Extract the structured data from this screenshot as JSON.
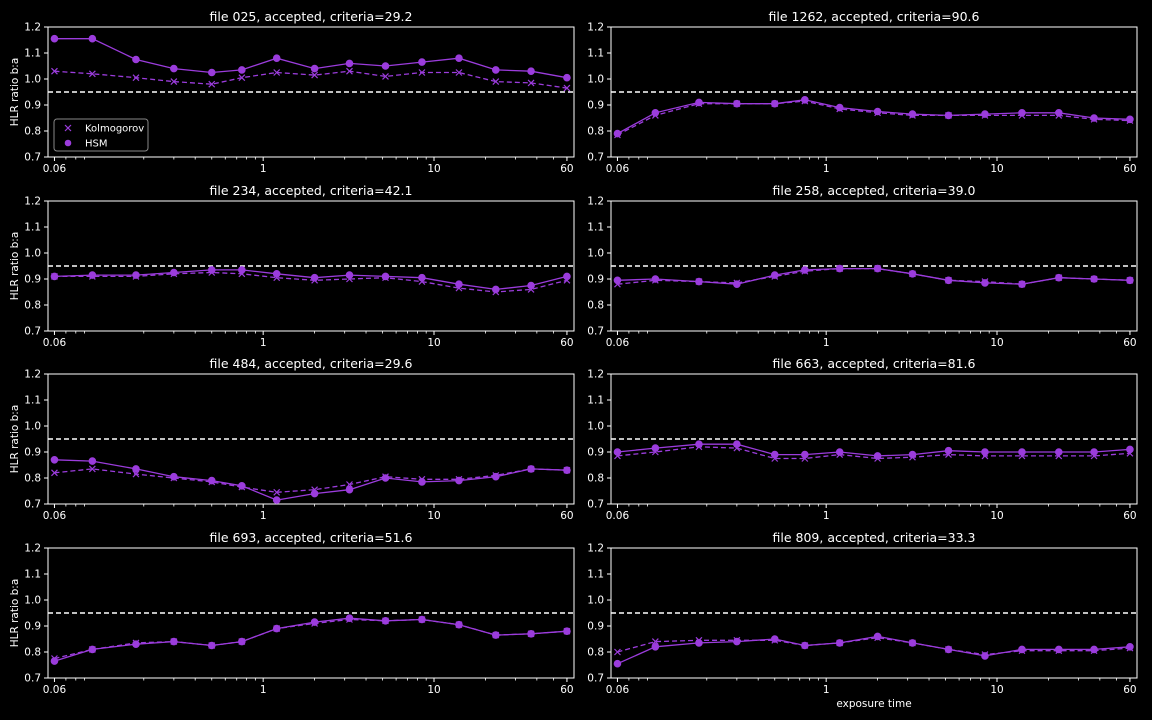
{
  "figure": {
    "background": "#000000",
    "foreground": "#ffffff",
    "series_color": "#9b3cdc",
    "reference_color": "#ffffff"
  },
  "chart_data": [
    {
      "type": "line",
      "title": "file 025, accepted, criteria=29.2",
      "xlabel": "",
      "ylabel": "HLR ratio b:a",
      "xscale": "log",
      "xlim": [
        0.055,
        66
      ],
      "ylim": [
        0.7,
        1.2
      ],
      "xticks": [
        0.06,
        1,
        10,
        60
      ],
      "xtick_labels": [
        "0.06",
        "1",
        "10",
        "60"
      ],
      "yticks": [
        0.7,
        0.8,
        0.9,
        1.0,
        1.1,
        1.2
      ],
      "ytick_labels": [
        "0.7",
        "0.8",
        "0.9",
        "1.0",
        "1.1",
        "1.2"
      ],
      "reference_line": 0.95,
      "legend": {
        "position": "lower-left",
        "entries": [
          "Kolmogorov",
          "HSM"
        ]
      },
      "x": [
        0.06,
        0.1,
        0.18,
        0.3,
        0.5,
        0.75,
        1.2,
        2,
        3.2,
        5.2,
        8.5,
        14,
        23,
        37,
        60
      ],
      "series": [
        {
          "name": "Kolmogorov",
          "marker": "x",
          "linestyle": "dashed",
          "values": [
            1.03,
            1.02,
            1.005,
            0.99,
            0.98,
            1.005,
            1.025,
            1.015,
            1.03,
            1.01,
            1.025,
            1.025,
            0.99,
            0.985,
            0.965
          ]
        },
        {
          "name": "HSM",
          "marker": "o",
          "linestyle": "solid",
          "values": [
            1.155,
            1.155,
            1.075,
            1.04,
            1.025,
            1.035,
            1.08,
            1.04,
            1.06,
            1.05,
            1.065,
            1.08,
            1.035,
            1.03,
            1.005
          ]
        }
      ]
    },
    {
      "type": "line",
      "title": "file 1262, accepted, criteria=90.6",
      "xlabel": "",
      "ylabel": "",
      "xscale": "log",
      "xlim": [
        0.055,
        66
      ],
      "ylim": [
        0.7,
        1.2
      ],
      "xticks": [
        0.06,
        1,
        10,
        60
      ],
      "xtick_labels": [
        "0.06",
        "1",
        "10",
        "60"
      ],
      "yticks": [
        0.7,
        0.8,
        0.9,
        1.0,
        1.1,
        1.2
      ],
      "ytick_labels": [
        "0.7",
        "0.8",
        "0.9",
        "1.0",
        "1.1",
        "1.2"
      ],
      "reference_line": 0.95,
      "x": [
        0.06,
        0.1,
        0.18,
        0.3,
        0.5,
        0.75,
        1.2,
        2,
        3.2,
        5.2,
        8.5,
        14,
        23,
        37,
        60
      ],
      "series": [
        {
          "name": "Kolmogorov",
          "marker": "x",
          "linestyle": "dashed",
          "values": [
            0.785,
            0.86,
            0.905,
            0.905,
            0.905,
            0.915,
            0.885,
            0.87,
            0.86,
            0.86,
            0.86,
            0.86,
            0.86,
            0.845,
            0.84
          ]
        },
        {
          "name": "HSM",
          "marker": "o",
          "linestyle": "solid",
          "values": [
            0.79,
            0.87,
            0.91,
            0.905,
            0.905,
            0.92,
            0.89,
            0.875,
            0.865,
            0.86,
            0.865,
            0.87,
            0.87,
            0.85,
            0.845
          ]
        }
      ]
    },
    {
      "type": "line",
      "title": "file 234, accepted, criteria=42.1",
      "xlabel": "",
      "ylabel": "HLR ratio b:a",
      "xscale": "log",
      "xlim": [
        0.055,
        66
      ],
      "ylim": [
        0.7,
        1.2
      ],
      "xticks": [
        0.06,
        1,
        10,
        60
      ],
      "xtick_labels": [
        "0.06",
        "1",
        "10",
        "60"
      ],
      "yticks": [
        0.7,
        0.8,
        0.9,
        1.0,
        1.1,
        1.2
      ],
      "ytick_labels": [
        "0.7",
        "0.8",
        "0.9",
        "1.0",
        "1.1",
        "1.2"
      ],
      "reference_line": 0.95,
      "x": [
        0.06,
        0.1,
        0.18,
        0.3,
        0.5,
        0.75,
        1.2,
        2,
        3.2,
        5.2,
        8.5,
        14,
        23,
        37,
        60
      ],
      "series": [
        {
          "name": "Kolmogorov",
          "marker": "x",
          "linestyle": "dashed",
          "values": [
            0.91,
            0.91,
            0.91,
            0.92,
            0.925,
            0.92,
            0.905,
            0.895,
            0.9,
            0.905,
            0.89,
            0.865,
            0.85,
            0.86,
            0.895
          ]
        },
        {
          "name": "HSM",
          "marker": "o",
          "linestyle": "solid",
          "values": [
            0.91,
            0.915,
            0.915,
            0.925,
            0.935,
            0.935,
            0.92,
            0.905,
            0.915,
            0.91,
            0.905,
            0.88,
            0.86,
            0.875,
            0.91
          ]
        }
      ]
    },
    {
      "type": "line",
      "title": "file 258, accepted, criteria=39.0",
      "xlabel": "",
      "ylabel": "",
      "xscale": "log",
      "xlim": [
        0.055,
        66
      ],
      "ylim": [
        0.7,
        1.2
      ],
      "xticks": [
        0.06,
        1,
        10,
        60
      ],
      "xtick_labels": [
        "0.06",
        "1",
        "10",
        "60"
      ],
      "yticks": [
        0.7,
        0.8,
        0.9,
        1.0,
        1.1,
        1.2
      ],
      "ytick_labels": [
        "0.7",
        "0.8",
        "0.9",
        "1.0",
        "1.1",
        "1.2"
      ],
      "reference_line": 0.95,
      "x": [
        0.06,
        0.1,
        0.18,
        0.3,
        0.5,
        0.75,
        1.2,
        2,
        3.2,
        5.2,
        8.5,
        14,
        23,
        37,
        60
      ],
      "series": [
        {
          "name": "Kolmogorov",
          "marker": "x",
          "linestyle": "dashed",
          "values": [
            0.88,
            0.895,
            0.89,
            0.885,
            0.91,
            0.93,
            0.94,
            0.94,
            0.92,
            0.895,
            0.89,
            0.88,
            0.905,
            0.9,
            0.895
          ]
        },
        {
          "name": "HSM",
          "marker": "o",
          "linestyle": "solid",
          "values": [
            0.895,
            0.9,
            0.89,
            0.88,
            0.915,
            0.935,
            0.94,
            0.94,
            0.92,
            0.895,
            0.885,
            0.88,
            0.905,
            0.9,
            0.895
          ]
        }
      ]
    },
    {
      "type": "line",
      "title": "file 484, accepted, criteria=29.6",
      "xlabel": "",
      "ylabel": "HLR ratio b:a",
      "xscale": "log",
      "xlim": [
        0.055,
        66
      ],
      "ylim": [
        0.7,
        1.2
      ],
      "xticks": [
        0.06,
        1,
        10,
        60
      ],
      "xtick_labels": [
        "0.06",
        "1",
        "10",
        "60"
      ],
      "yticks": [
        0.7,
        0.8,
        0.9,
        1.0,
        1.1,
        1.2
      ],
      "ytick_labels": [
        "0.7",
        "0.8",
        "0.9",
        "1.0",
        "1.1",
        "1.2"
      ],
      "reference_line": 0.95,
      "x": [
        0.06,
        0.1,
        0.18,
        0.3,
        0.5,
        0.75,
        1.2,
        2,
        3.2,
        5.2,
        8.5,
        14,
        23,
        37,
        60
      ],
      "series": [
        {
          "name": "Kolmogorov",
          "marker": "x",
          "linestyle": "dashed",
          "values": [
            0.82,
            0.835,
            0.815,
            0.8,
            0.785,
            0.765,
            0.745,
            0.755,
            0.775,
            0.805,
            0.795,
            0.795,
            0.81,
            0.835,
            0.83
          ]
        },
        {
          "name": "HSM",
          "marker": "o",
          "linestyle": "solid",
          "values": [
            0.87,
            0.865,
            0.835,
            0.805,
            0.79,
            0.77,
            0.715,
            0.74,
            0.755,
            0.8,
            0.785,
            0.79,
            0.805,
            0.835,
            0.83
          ]
        }
      ]
    },
    {
      "type": "line",
      "title": "file 663, accepted, criteria=81.6",
      "xlabel": "",
      "ylabel": "",
      "xscale": "log",
      "xlim": [
        0.055,
        66
      ],
      "ylim": [
        0.7,
        1.2
      ],
      "xticks": [
        0.06,
        1,
        10,
        60
      ],
      "xtick_labels": [
        "0.06",
        "1",
        "10",
        "60"
      ],
      "yticks": [
        0.7,
        0.8,
        0.9,
        1.0,
        1.1,
        1.2
      ],
      "ytick_labels": [
        "0.7",
        "0.8",
        "0.9",
        "1.0",
        "1.1",
        "1.2"
      ],
      "reference_line": 0.95,
      "x": [
        0.06,
        0.1,
        0.18,
        0.3,
        0.5,
        0.75,
        1.2,
        2,
        3.2,
        5.2,
        8.5,
        14,
        23,
        37,
        60
      ],
      "series": [
        {
          "name": "Kolmogorov",
          "marker": "x",
          "linestyle": "dashed",
          "values": [
            0.885,
            0.9,
            0.92,
            0.915,
            0.875,
            0.875,
            0.89,
            0.875,
            0.88,
            0.89,
            0.885,
            0.885,
            0.885,
            0.885,
            0.895
          ]
        },
        {
          "name": "HSM",
          "marker": "o",
          "linestyle": "solid",
          "values": [
            0.9,
            0.915,
            0.93,
            0.93,
            0.89,
            0.89,
            0.9,
            0.885,
            0.89,
            0.905,
            0.9,
            0.9,
            0.9,
            0.9,
            0.91
          ]
        }
      ]
    },
    {
      "type": "line",
      "title": "file 693, accepted, criteria=51.6",
      "xlabel": "",
      "ylabel": "HLR ratio b:a",
      "xscale": "log",
      "xlim": [
        0.055,
        66
      ],
      "ylim": [
        0.7,
        1.2
      ],
      "xticks": [
        0.06,
        1,
        10,
        60
      ],
      "xtick_labels": [
        "0.06",
        "1",
        "10",
        "60"
      ],
      "yticks": [
        0.7,
        0.8,
        0.9,
        1.0,
        1.1,
        1.2
      ],
      "ytick_labels": [
        "0.7",
        "0.8",
        "0.9",
        "1.0",
        "1.1",
        "1.2"
      ],
      "reference_line": 0.95,
      "x": [
        0.06,
        0.1,
        0.18,
        0.3,
        0.5,
        0.75,
        1.2,
        2,
        3.2,
        5.2,
        8.5,
        14,
        23,
        37,
        60
      ],
      "series": [
        {
          "name": "Kolmogorov",
          "marker": "x",
          "linestyle": "dashed",
          "values": [
            0.775,
            0.81,
            0.835,
            0.84,
            0.825,
            0.84,
            0.89,
            0.91,
            0.925,
            0.92,
            0.925,
            0.905,
            0.865,
            0.87,
            0.88
          ]
        },
        {
          "name": "HSM",
          "marker": "o",
          "linestyle": "solid",
          "values": [
            0.765,
            0.81,
            0.83,
            0.84,
            0.825,
            0.84,
            0.89,
            0.915,
            0.93,
            0.92,
            0.925,
            0.905,
            0.865,
            0.87,
            0.88
          ]
        }
      ]
    },
    {
      "type": "line",
      "title": "file 809, accepted, criteria=33.3",
      "xlabel": "exposure time",
      "ylabel": "",
      "xscale": "log",
      "xlim": [
        0.055,
        66
      ],
      "ylim": [
        0.7,
        1.2
      ],
      "xticks": [
        0.06,
        1,
        10,
        60
      ],
      "xtick_labels": [
        "0.06",
        "1",
        "10",
        "60"
      ],
      "yticks": [
        0.7,
        0.8,
        0.9,
        1.0,
        1.1,
        1.2
      ],
      "ytick_labels": [
        "0.7",
        "0.8",
        "0.9",
        "1.0",
        "1.1",
        "1.2"
      ],
      "reference_line": 0.95,
      "x": [
        0.06,
        0.1,
        0.18,
        0.3,
        0.5,
        0.75,
        1.2,
        2,
        3.2,
        5.2,
        8.5,
        14,
        23,
        37,
        60
      ],
      "series": [
        {
          "name": "Kolmogorov",
          "marker": "x",
          "linestyle": "dashed",
          "values": [
            0.8,
            0.84,
            0.845,
            0.845,
            0.845,
            0.825,
            0.835,
            0.855,
            0.835,
            0.81,
            0.79,
            0.805,
            0.805,
            0.805,
            0.815
          ]
        },
        {
          "name": "HSM",
          "marker": "o",
          "linestyle": "solid",
          "values": [
            0.755,
            0.82,
            0.835,
            0.84,
            0.85,
            0.825,
            0.835,
            0.86,
            0.835,
            0.81,
            0.785,
            0.81,
            0.81,
            0.81,
            0.82
          ]
        }
      ]
    }
  ]
}
